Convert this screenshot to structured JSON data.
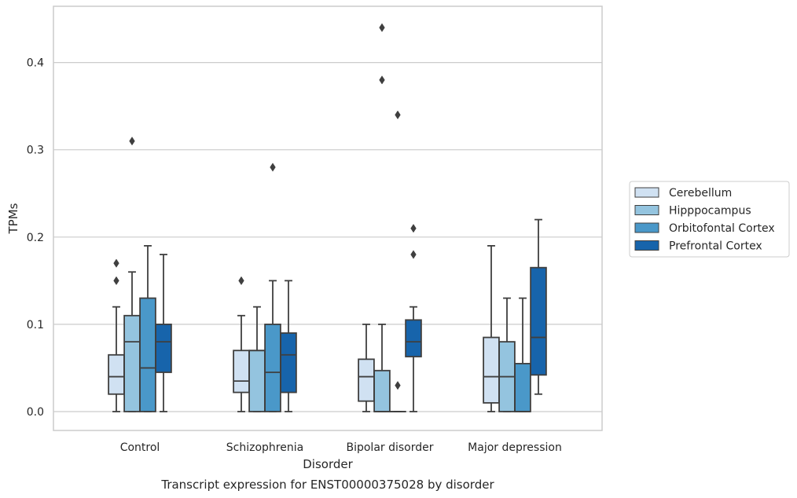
{
  "chart_data": {
    "type": "box",
    "title": "Transcript expression for ENST00000375028 by disorder",
    "xlabel": "Disorder",
    "ylabel": "TPMs",
    "ylim": [
      -0.021,
      0.463
    ],
    "yticks": [
      "0.0",
      "0.1",
      "0.2",
      "0.3",
      "0.4"
    ],
    "grid": "horizontal",
    "legend_position": "right",
    "categories": [
      "Control",
      "Schizophrenia",
      "Bipolar disorder",
      "Major depression"
    ],
    "series": [
      {
        "name": "Cerebellum",
        "color": "#d0e1f2",
        "boxes": [
          {
            "q1": 0.02,
            "median": 0.04,
            "q3": 0.065,
            "whisker_low": 0.0,
            "whisker_high": 0.12,
            "outliers": [
              0.15,
              0.17
            ]
          },
          {
            "q1": 0.022,
            "median": 0.035,
            "q3": 0.07,
            "whisker_low": 0.0,
            "whisker_high": 0.11,
            "outliers": [
              0.15
            ]
          },
          {
            "q1": 0.012,
            "median": 0.04,
            "q3": 0.06,
            "whisker_low": 0.0,
            "whisker_high": 0.1,
            "outliers": []
          },
          {
            "q1": 0.01,
            "median": 0.04,
            "q3": 0.085,
            "whisker_low": 0.0,
            "whisker_high": 0.19,
            "outliers": []
          }
        ]
      },
      {
        "name": "Hipppocampus",
        "color": "#94c4df",
        "boxes": [
          {
            "q1": 0.0,
            "median": 0.08,
            "q3": 0.11,
            "whisker_low": 0.0,
            "whisker_high": 0.16,
            "outliers": [
              0.31
            ]
          },
          {
            "q1": 0.0,
            "median": 0.07,
            "q3": 0.07,
            "whisker_low": 0.0,
            "whisker_high": 0.12,
            "outliers": []
          },
          {
            "q1": 0.0,
            "median": 0.0,
            "q3": 0.047,
            "whisker_low": 0.0,
            "whisker_high": 0.1,
            "outliers": [
              0.38,
              0.44
            ]
          },
          {
            "q1": 0.0,
            "median": 0.04,
            "q3": 0.08,
            "whisker_low": 0.0,
            "whisker_high": 0.13,
            "outliers": []
          }
        ]
      },
      {
        "name": "Orbitofontal Cortex",
        "color": "#4a98c9",
        "boxes": [
          {
            "q1": 0.0,
            "median": 0.05,
            "q3": 0.13,
            "whisker_low": 0.0,
            "whisker_high": 0.19,
            "outliers": []
          },
          {
            "q1": 0.0,
            "median": 0.045,
            "q3": 0.1,
            "whisker_low": 0.0,
            "whisker_high": 0.15,
            "outliers": [
              0.28
            ]
          },
          {
            "q1": 0.0,
            "median": 0.0,
            "q3": 0.0,
            "whisker_low": 0.0,
            "whisker_high": 0.0,
            "outliers": [
              0.03,
              0.34
            ]
          },
          {
            "q1": 0.0,
            "median": 0.0,
            "q3": 0.055,
            "whisker_low": 0.0,
            "whisker_high": 0.13,
            "outliers": []
          }
        ]
      },
      {
        "name": "Prefrontal Cortex",
        "color": "#1764ab",
        "boxes": [
          {
            "q1": 0.045,
            "median": 0.08,
            "q3": 0.1,
            "whisker_low": 0.0,
            "whisker_high": 0.18,
            "outliers": []
          },
          {
            "q1": 0.022,
            "median": 0.065,
            "q3": 0.09,
            "whisker_low": 0.0,
            "whisker_high": 0.15,
            "outliers": []
          },
          {
            "q1": 0.063,
            "median": 0.08,
            "q3": 0.105,
            "whisker_low": 0.0,
            "whisker_high": 0.12,
            "outliers": [
              0.18,
              0.21
            ]
          },
          {
            "q1": 0.042,
            "median": 0.085,
            "q3": 0.165,
            "whisker_low": 0.02,
            "whisker_high": 0.22,
            "outliers": []
          }
        ]
      }
    ]
  }
}
